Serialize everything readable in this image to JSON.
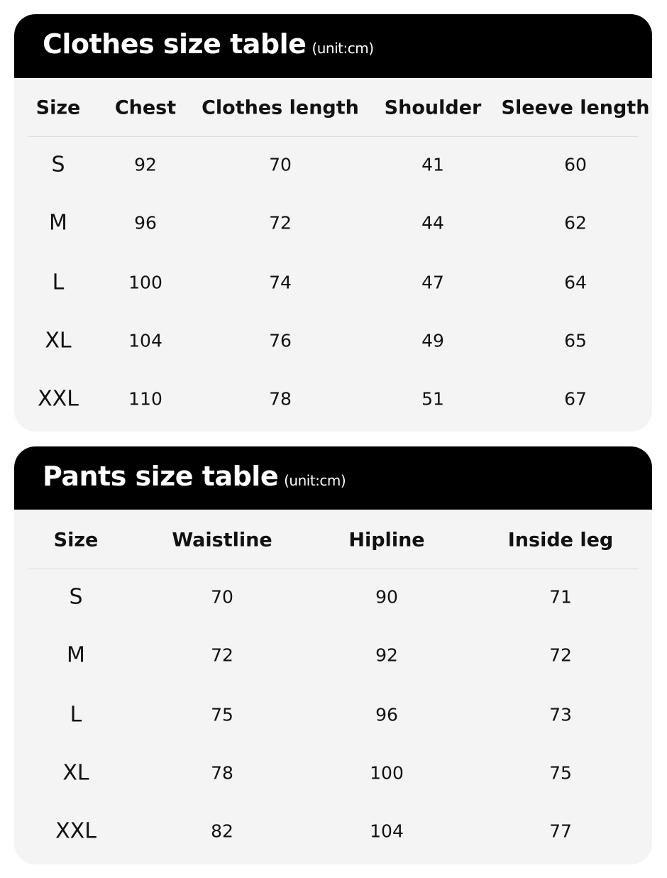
{
  "clothes": {
    "title": "Clothes size table",
    "unit": "(unit:cm)",
    "columns": [
      "Size",
      "Chest",
      "Clothes length",
      "Shoulder",
      "Sleeve length"
    ],
    "rows": [
      [
        "S",
        "92",
        "70",
        "41",
        "60"
      ],
      [
        "M",
        "96",
        "72",
        "44",
        "62"
      ],
      [
        "L",
        "100",
        "74",
        "47",
        "64"
      ],
      [
        "XL",
        "104",
        "76",
        "49",
        "65"
      ],
      [
        "XXL",
        "110",
        "78",
        "51",
        "67"
      ]
    ]
  },
  "pants": {
    "title": "Pants size table",
    "unit": "(unit:cm)",
    "columns": [
      "Size",
      "Waistline",
      "Hipline",
      "Inside leg"
    ],
    "rows": [
      [
        "S",
        "70",
        "90",
        "71"
      ],
      [
        "M",
        "72",
        "92",
        "72"
      ],
      [
        "L",
        "75",
        "96",
        "73"
      ],
      [
        "XL",
        "78",
        "100",
        "75"
      ],
      [
        "XXL",
        "82",
        "104",
        "77"
      ]
    ]
  }
}
